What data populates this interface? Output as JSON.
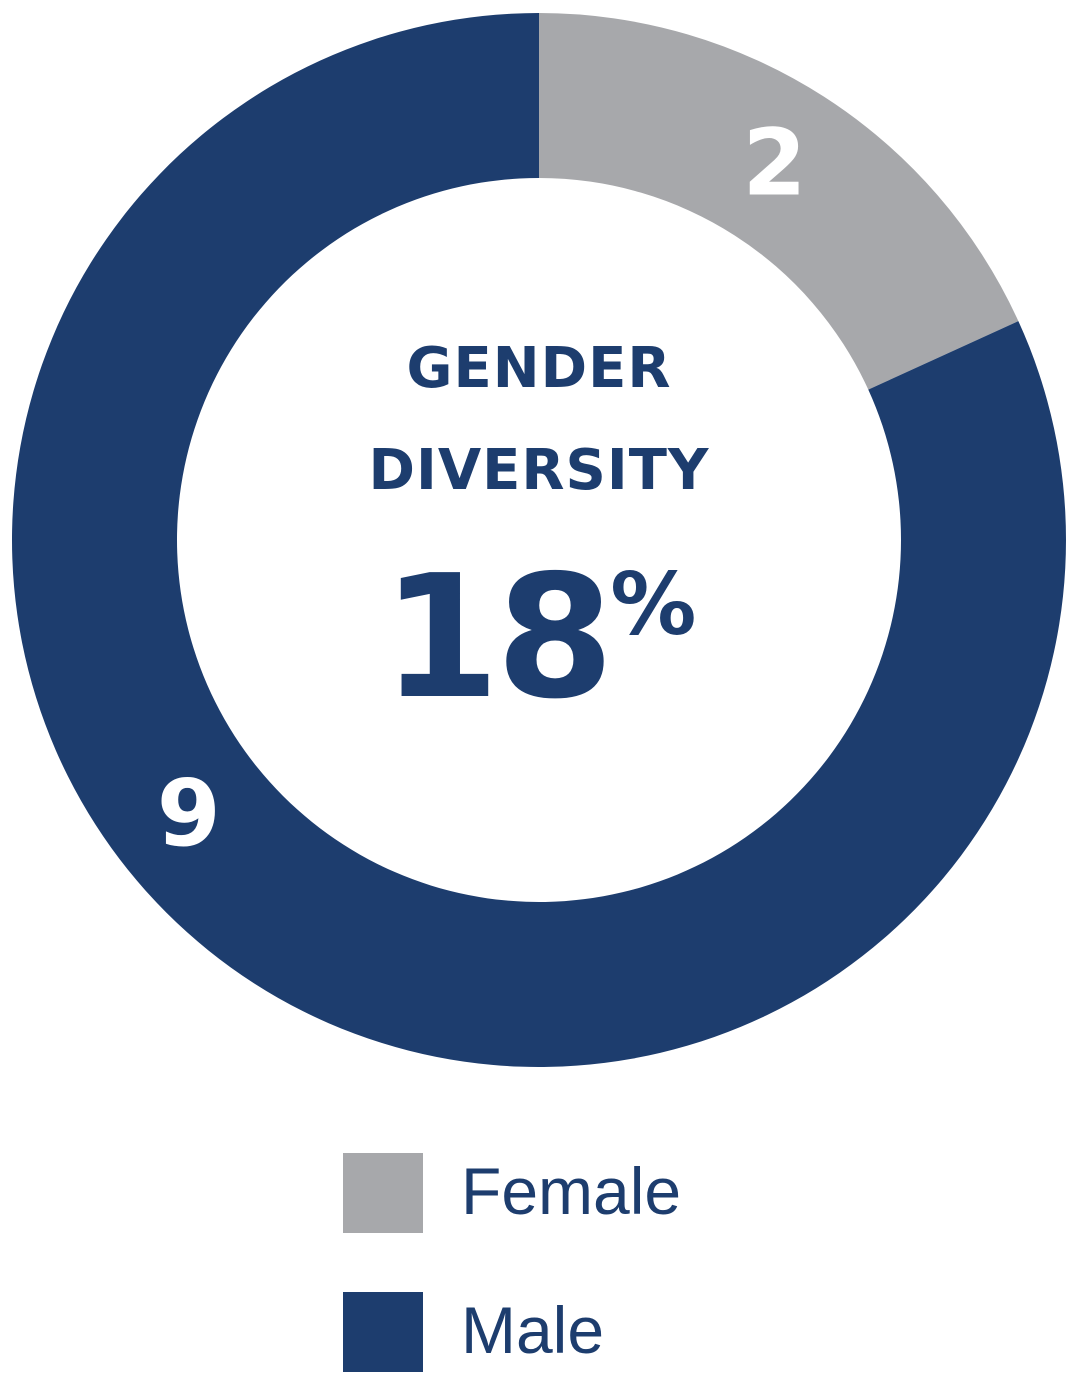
{
  "chart_data": {
    "type": "pie",
    "style": "donut",
    "center_title_lines": [
      "GENDER",
      "DIVERSITY"
    ],
    "center_value": "18",
    "center_value_unit": "%",
    "slices": [
      {
        "label": "Female",
        "value": 2,
        "color": "#a7a8ab"
      },
      {
        "label": "Male",
        "value": 9,
        "color": "#1d3d6e"
      }
    ],
    "legend": {
      "position": "bottom",
      "entries": [
        "Female",
        "Male"
      ]
    }
  }
}
